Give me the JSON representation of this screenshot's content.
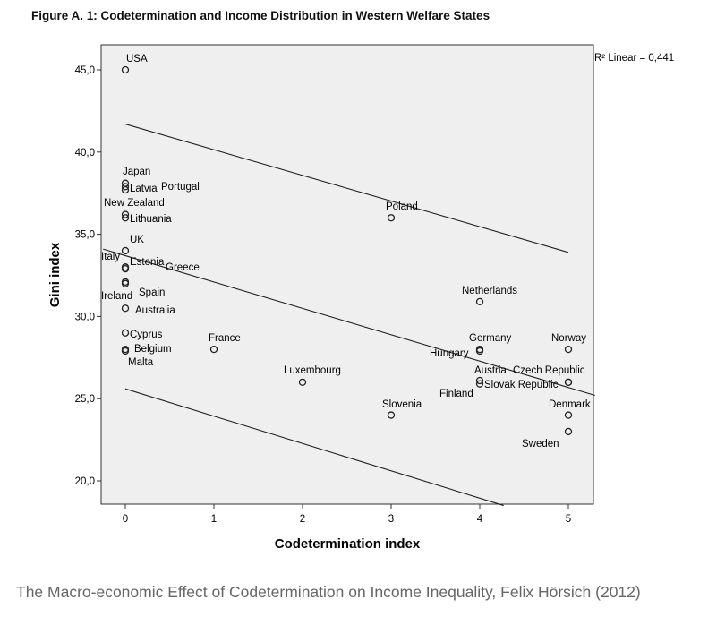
{
  "figure_title": "Figure A. 1: Codetermination and Income Distribution in Western Welfare States",
  "caption": "The Macro-economic Effect of Codetermination on Income Inequality, Felix Hörsich (2012)",
  "colors": {
    "plot_background": "#efefef",
    "line": "#222222",
    "text": "#000000",
    "caption": "#666666"
  },
  "chart_data": {
    "type": "scatter",
    "title": "",
    "xlabel": "Codetermination index",
    "ylabel": "Gini index",
    "xlim": [
      -0.25,
      5.3
    ],
    "ylim": [
      18.5,
      47.2
    ],
    "xticks": [
      0,
      1,
      2,
      3,
      4,
      5
    ],
    "xtick_labels": [
      "0",
      "1",
      "2",
      "3",
      "4",
      "5"
    ],
    "yticks": [
      20,
      25,
      30,
      35,
      40,
      45
    ],
    "ytick_labels": [
      "20,0",
      "25,0",
      "30,0",
      "35,0",
      "40,0",
      "45,0"
    ],
    "r2_label": "R² Linear = 0,441",
    "grid": false,
    "points": [
      {
        "label": "USA",
        "x": 0,
        "y": 45.0
      },
      {
        "label": "Japan",
        "x": 0,
        "y": 38.1
      },
      {
        "label": "Latvia",
        "x": 0,
        "y": 37.9
      },
      {
        "label": "Portugal",
        "x": 0,
        "y": 37.7
      },
      {
        "label": "New Zealand",
        "x": 0,
        "y": 36.2
      },
      {
        "label": "Lithuania",
        "x": 0,
        "y": 36.0
      },
      {
        "label": "UK",
        "x": 0,
        "y": 34.0
      },
      {
        "label": "Italy",
        "x": 0,
        "y": 33.0
      },
      {
        "label": "Estonia",
        "x": 0,
        "y": 33.0
      },
      {
        "label": "Greece",
        "x": 0,
        "y": 32.9
      },
      {
        "label": "Ireland",
        "x": 0,
        "y": 32.0
      },
      {
        "label": "Spain",
        "x": 0,
        "y": 32.1
      },
      {
        "label": "Australia",
        "x": 0,
        "y": 30.5
      },
      {
        "label": "Cyprus",
        "x": 0,
        "y": 29.0
      },
      {
        "label": "Belgium",
        "x": 0,
        "y": 28.0
      },
      {
        "label": "Malta",
        "x": 0,
        "y": 27.9
      },
      {
        "label": "France",
        "x": 1,
        "y": 28.0
      },
      {
        "label": "Luxembourg",
        "x": 2,
        "y": 26.0
      },
      {
        "label": "Poland",
        "x": 3,
        "y": 36.0
      },
      {
        "label": "Slovenia",
        "x": 3,
        "y": 24.0
      },
      {
        "label": "Netherlands",
        "x": 4,
        "y": 30.9
      },
      {
        "label": "Germany",
        "x": 4,
        "y": 28.0
      },
      {
        "label": "Hungary",
        "x": 4,
        "y": 27.9
      },
      {
        "label": "Austria",
        "x": 4,
        "y": 26.1
      },
      {
        "label": "Finland",
        "x": 4,
        "y": 25.9
      },
      {
        "label": "Norway",
        "x": 5,
        "y": 28.0
      },
      {
        "label": "Czech Republic",
        "x": 5,
        "y": 26.0
      },
      {
        "label": "Slovak Republic",
        "x": 5,
        "y": 26.0
      },
      {
        "label": "Denmark",
        "x": 5,
        "y": 24.0
      },
      {
        "label": "Sweden",
        "x": 5,
        "y": 23.0
      }
    ],
    "fit_lines": [
      {
        "name": "upper confidence bound",
        "x": [
          0,
          5
        ],
        "y": [
          41.7,
          33.9
        ]
      },
      {
        "name": "linear fit",
        "x": [
          -0.25,
          5.3
        ],
        "y": [
          34.1,
          25.2
        ]
      },
      {
        "name": "lower confidence bound",
        "x": [
          0,
          4.27
        ],
        "y": [
          25.6,
          18.5
        ]
      }
    ]
  }
}
